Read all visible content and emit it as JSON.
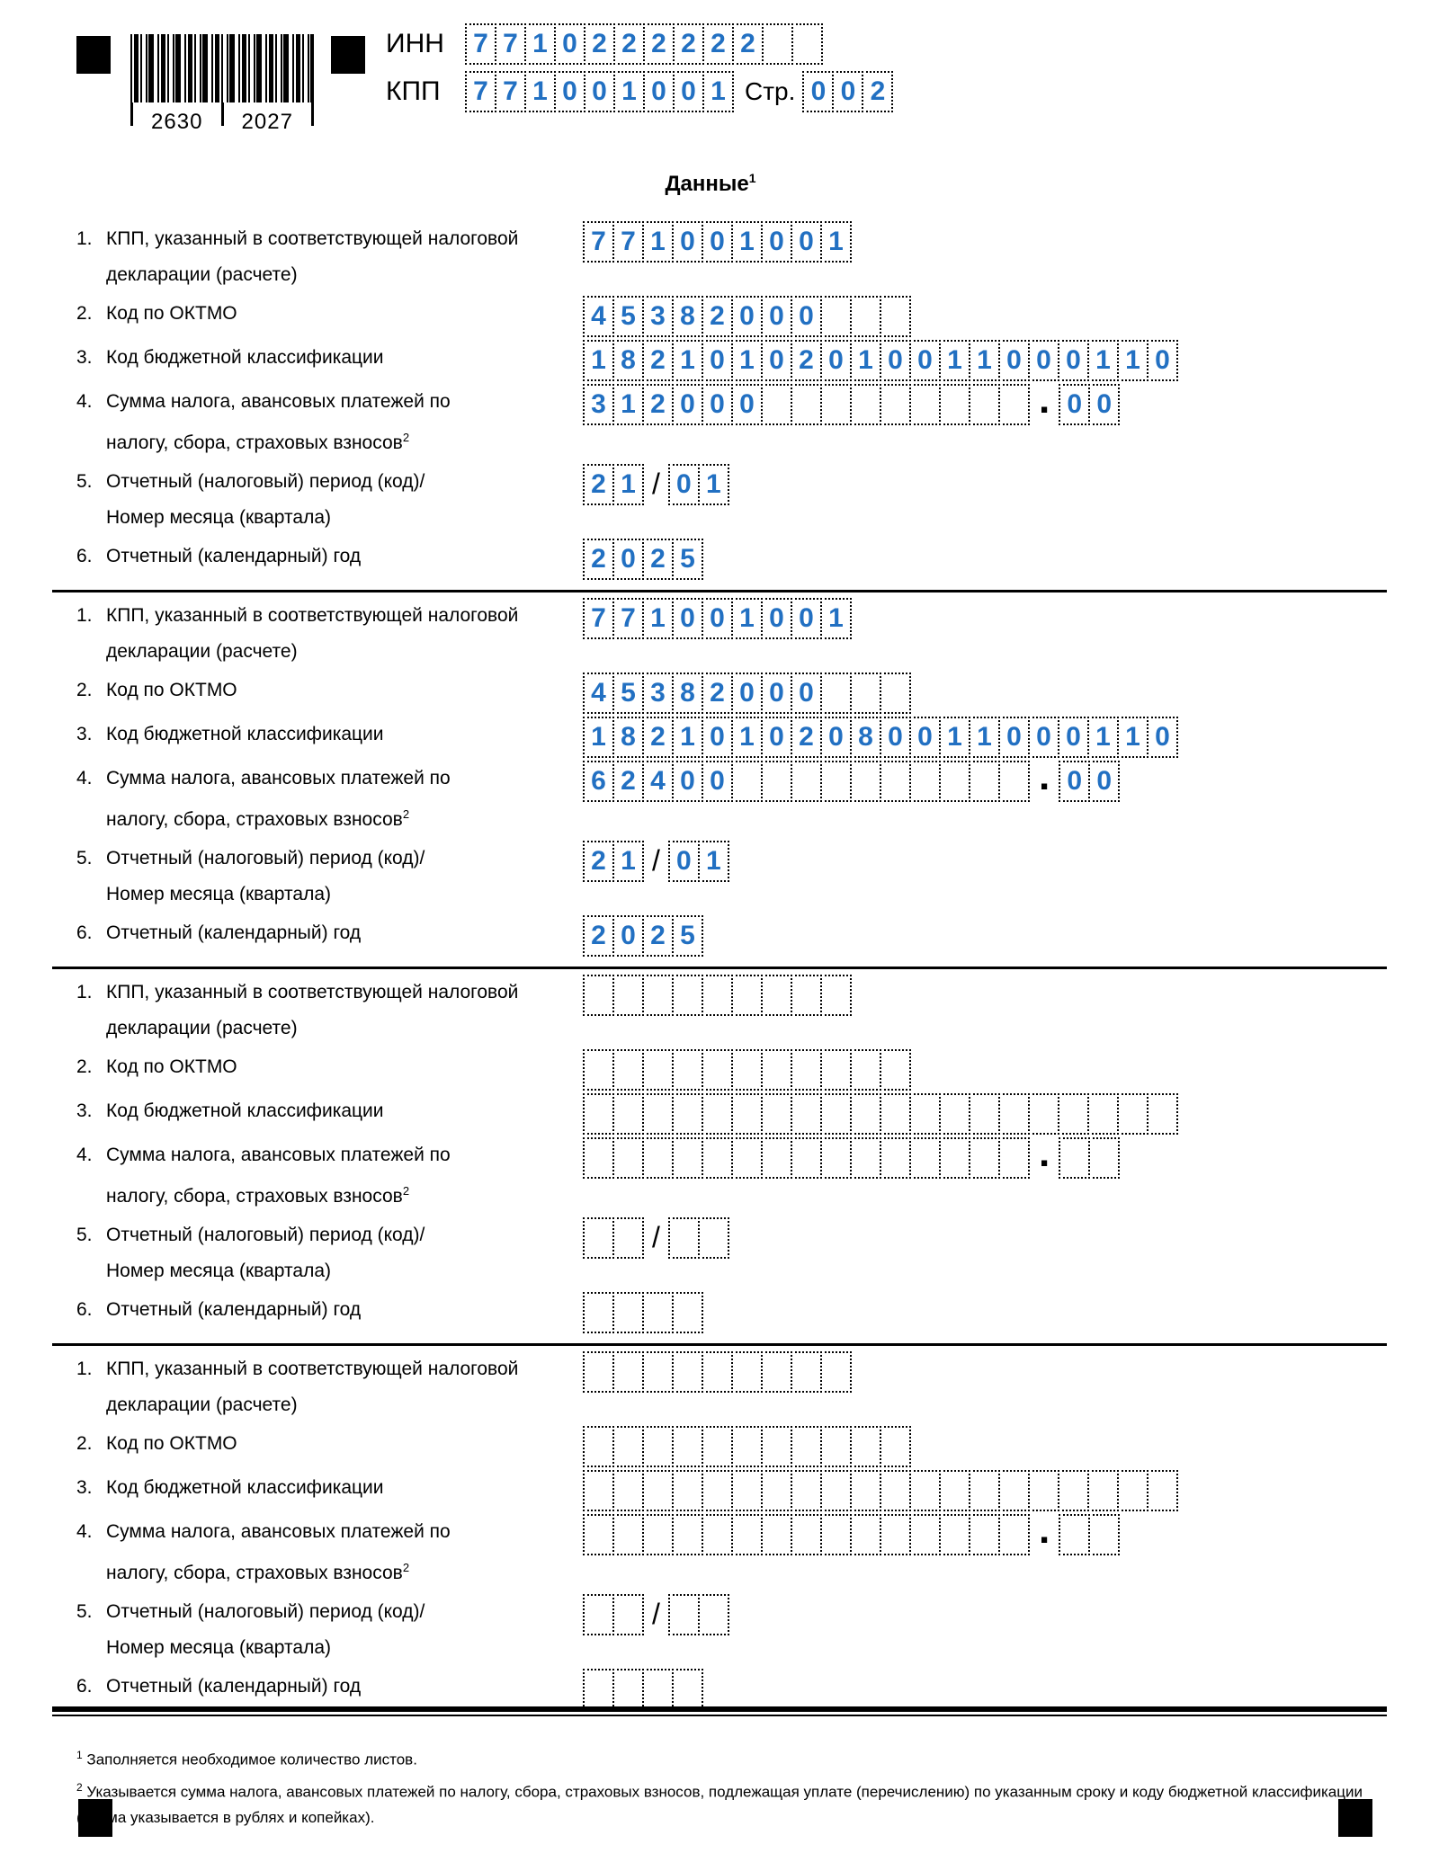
{
  "colors": {
    "digit_blue": "#2270c2"
  },
  "header": {
    "barcode_left": "2630",
    "barcode_right": "2027",
    "inn_label": "ИНН",
    "inn": {
      "cells": 12,
      "value": "7710222222"
    },
    "kpp_label": "КПП",
    "kpp": {
      "cells": 9,
      "value": "771001001"
    },
    "page_label": "Стр.",
    "page": {
      "cells": 3,
      "value": "002"
    }
  },
  "title": {
    "text": "Данные",
    "sup": "1"
  },
  "blocks": [
    {
      "rows": [
        {
          "num": "1.",
          "label_lines": [
            "КПП, указанный в соответствующей налоговой",
            "декларации (расчете)"
          ],
          "segments": [
            {
              "cells": 9,
              "value": "771001001"
            }
          ]
        },
        {
          "num": "2.",
          "label_lines": [
            "Код по ОКТМО"
          ],
          "segments": [
            {
              "cells": 11,
              "value": "45382000"
            }
          ]
        },
        {
          "num": "3.",
          "label_lines": [
            "Код бюджетной классификации"
          ],
          "segments": [
            {
              "cells": 20,
              "value": "18210102010011000110"
            }
          ]
        },
        {
          "num": "4.",
          "label_lines": [
            "Сумма налога, авансовых платежей по",
            "налогу, сбора, страховых взносов"
          ],
          "label_sup": "2",
          "segments": [
            {
              "cells": 15,
              "value": "312000"
            },
            {
              "sep": "."
            },
            {
              "cells": 2,
              "value": "00"
            }
          ]
        },
        {
          "num": "5.",
          "label_lines": [
            "Отчетный (налоговый) период (код)/",
            "Номер месяца (квартала)"
          ],
          "segments": [
            {
              "cells": 2,
              "value": "21"
            },
            {
              "sep": "/"
            },
            {
              "cells": 2,
              "value": "01"
            }
          ]
        },
        {
          "num": "6.",
          "label_lines": [
            "Отчетный (календарный) год"
          ],
          "segments": [
            {
              "cells": 4,
              "value": "2025"
            }
          ]
        }
      ]
    },
    {
      "rows": [
        {
          "num": "1.",
          "label_lines": [
            "КПП, указанный в соответствующей налоговой",
            "декларации (расчете)"
          ],
          "segments": [
            {
              "cells": 9,
              "value": "771001001"
            }
          ]
        },
        {
          "num": "2.",
          "label_lines": [
            "Код по ОКТМО"
          ],
          "segments": [
            {
              "cells": 11,
              "value": "45382000"
            }
          ]
        },
        {
          "num": "3.",
          "label_lines": [
            "Код бюджетной классификации"
          ],
          "segments": [
            {
              "cells": 20,
              "value": "18210102080011000110"
            }
          ]
        },
        {
          "num": "4.",
          "label_lines": [
            "Сумма налога, авансовых платежей по",
            "налогу, сбора, страховых взносов"
          ],
          "label_sup": "2",
          "segments": [
            {
              "cells": 15,
              "value": "62400"
            },
            {
              "sep": "."
            },
            {
              "cells": 2,
              "value": "00"
            }
          ]
        },
        {
          "num": "5.",
          "label_lines": [
            "Отчетный (налоговый) период (код)/",
            "Номер месяца (квартала)"
          ],
          "segments": [
            {
              "cells": 2,
              "value": "21"
            },
            {
              "sep": "/"
            },
            {
              "cells": 2,
              "value": "01"
            }
          ]
        },
        {
          "num": "6.",
          "label_lines": [
            "Отчетный (календарный) год"
          ],
          "segments": [
            {
              "cells": 4,
              "value": "2025"
            }
          ]
        }
      ]
    },
    {
      "rows": [
        {
          "num": "1.",
          "label_lines": [
            "КПП, указанный в соответствующей налоговой",
            "декларации (расчете)"
          ],
          "segments": [
            {
              "cells": 9,
              "value": ""
            }
          ]
        },
        {
          "num": "2.",
          "label_lines": [
            "Код по ОКТМО"
          ],
          "segments": [
            {
              "cells": 11,
              "value": ""
            }
          ]
        },
        {
          "num": "3.",
          "label_lines": [
            "Код бюджетной классификации"
          ],
          "segments": [
            {
              "cells": 20,
              "value": ""
            }
          ]
        },
        {
          "num": "4.",
          "label_lines": [
            "Сумма налога, авансовых платежей по",
            "налогу, сбора, страховых взносов"
          ],
          "label_sup": "2",
          "segments": [
            {
              "cells": 15,
              "value": ""
            },
            {
              "sep": "."
            },
            {
              "cells": 2,
              "value": ""
            }
          ]
        },
        {
          "num": "5.",
          "label_lines": [
            "Отчетный (налоговый) период (код)/",
            "Номер месяца (квартала)"
          ],
          "segments": [
            {
              "cells": 2,
              "value": ""
            },
            {
              "sep": "/"
            },
            {
              "cells": 2,
              "value": ""
            }
          ]
        },
        {
          "num": "6.",
          "label_lines": [
            "Отчетный (календарный) год"
          ],
          "segments": [
            {
              "cells": 4,
              "value": ""
            }
          ]
        }
      ]
    },
    {
      "rows": [
        {
          "num": "1.",
          "label_lines": [
            "КПП, указанный в соответствующей налоговой",
            "декларации (расчете)"
          ],
          "segments": [
            {
              "cells": 9,
              "value": ""
            }
          ]
        },
        {
          "num": "2.",
          "label_lines": [
            "Код по ОКТМО"
          ],
          "segments": [
            {
              "cells": 11,
              "value": ""
            }
          ]
        },
        {
          "num": "3.",
          "label_lines": [
            "Код бюджетной классификации"
          ],
          "segments": [
            {
              "cells": 20,
              "value": ""
            }
          ]
        },
        {
          "num": "4.",
          "label_lines": [
            "Сумма налога, авансовых платежей по",
            "налогу, сбора, страховых взносов"
          ],
          "label_sup": "2",
          "segments": [
            {
              "cells": 15,
              "value": ""
            },
            {
              "sep": "."
            },
            {
              "cells": 2,
              "value": ""
            }
          ]
        },
        {
          "num": "5.",
          "label_lines": [
            "Отчетный (налоговый) период (код)/",
            "Номер месяца (квартала)"
          ],
          "segments": [
            {
              "cells": 2,
              "value": ""
            },
            {
              "sep": "/"
            },
            {
              "cells": 2,
              "value": ""
            }
          ]
        },
        {
          "num": "6.",
          "label_lines": [
            "Отчетный (календарный) год"
          ],
          "segments": [
            {
              "cells": 4,
              "value": ""
            }
          ]
        }
      ]
    }
  ],
  "footnotes": [
    {
      "sup": "1",
      "text": "Заполняется необходимое количество листов."
    },
    {
      "sup": "2",
      "text": "Указывается сумма налога, авансовых платежей по налогу, сбора, страховых взносов, подлежащая уплате (перечислению) по указанным сроку и коду бюджетной классификации (сумма указывается в рублях и копейках)."
    }
  ]
}
